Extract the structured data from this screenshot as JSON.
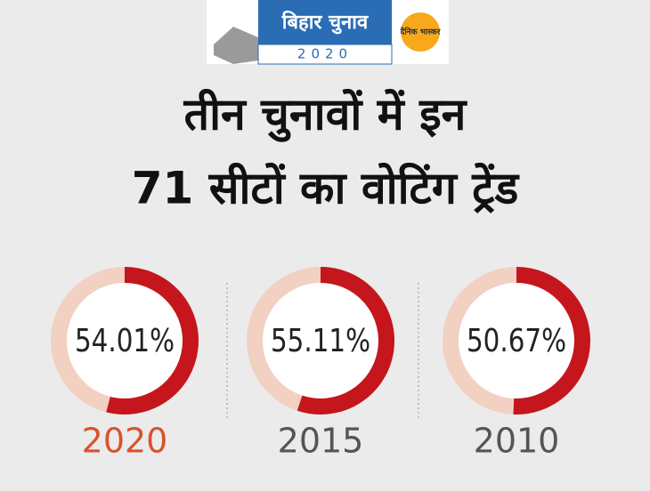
{
  "header": {
    "logo_title": "बिहार चुनाव",
    "logo_year": "2020",
    "brand": "दैनिक भास्कर"
  },
  "title": [
    "तीन चुनावों में इन",
    "71 सीटों का वोटिंग ट्रेंड"
  ],
  "chart_data": [
    {
      "type": "donut",
      "title": "2020",
      "title_color": "#d9532b",
      "values": [
        54.01
      ],
      "value_labels": [
        "54.01%"
      ],
      "color": "#c4161c",
      "track_color": "#f2d0c2"
    },
    {
      "type": "donut",
      "title": "2015",
      "title_color": "#555555",
      "values": [
        55.11
      ],
      "value_labels": [
        "55.11%"
      ],
      "color": "#c4161c",
      "track_color": "#f2d0c2"
    },
    {
      "type": "donut",
      "title": "2010",
      "title_color": "#555555",
      "values": [
        50.67
      ],
      "value_labels": [
        "50.67%"
      ],
      "color": "#c4161c",
      "track_color": "#f2d0c2"
    }
  ]
}
